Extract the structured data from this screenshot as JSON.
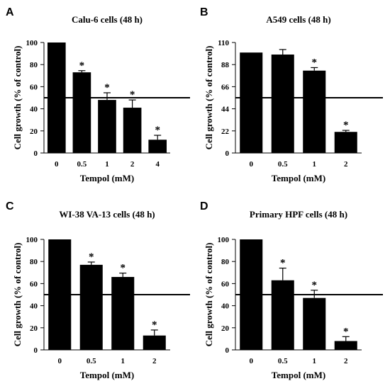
{
  "chart_data": [
    {
      "type": "bar",
      "panel": "A",
      "title": "Calu-6 cells (48 h)",
      "xlabel": "Tempol (mM)",
      "ylabel": "Cell growth (% of control)",
      "categories": [
        "0",
        "0.5",
        "1",
        "2",
        "4"
      ],
      "values": [
        100,
        73,
        48,
        41,
        12
      ],
      "errors": [
        0,
        1.5,
        6.5,
        7,
        4
      ],
      "significant": [
        false,
        true,
        true,
        true,
        true
      ],
      "significance_marker": "*",
      "reference_line": 50,
      "ylim": [
        0,
        100
      ],
      "yticks": [
        0,
        20,
        40,
        60,
        80,
        100
      ],
      "bar_color": "#000000"
    },
    {
      "type": "bar",
      "panel": "B",
      "title": "A549 cells (48 h)",
      "xlabel": "Tempol (mM)",
      "ylabel": "Cell growth (% of control)",
      "categories": [
        "0",
        "0.5",
        "1",
        "2"
      ],
      "values": [
        100,
        98,
        82,
        21
      ],
      "errors": [
        0,
        5,
        3,
        1.5
      ],
      "significant": [
        false,
        false,
        true,
        true
      ],
      "significance_marker": "*",
      "reference_line": 55,
      "ylim": [
        0,
        110
      ],
      "yticks": [
        0,
        22,
        44,
        66,
        88,
        110
      ],
      "bar_color": "#000000"
    },
    {
      "type": "bar",
      "panel": "C",
      "title": "WI-38 VA-13 cells (48 h)",
      "xlabel": "Tempol (mM)",
      "ylabel": "Cell growth (% of control)",
      "categories": [
        "0",
        "0.5",
        "1",
        "2"
      ],
      "values": [
        100,
        77,
        66,
        13
      ],
      "errors": [
        0,
        2.5,
        3.5,
        5
      ],
      "significant": [
        false,
        true,
        true,
        true
      ],
      "significance_marker": "*",
      "reference_line": 50,
      "ylim": [
        0,
        100
      ],
      "yticks": [
        0,
        20,
        40,
        60,
        80,
        100
      ],
      "bar_color": "#000000"
    },
    {
      "type": "bar",
      "panel": "D",
      "title": "Primary HPF cells (48 h)",
      "xlabel": "Tempol (mM)",
      "ylabel": "Cell growth (% of control)",
      "categories": [
        "0",
        "0.5",
        "1",
        "2"
      ],
      "values": [
        100,
        63,
        47,
        8
      ],
      "errors": [
        0,
        11,
        7,
        4
      ],
      "significant": [
        false,
        true,
        true,
        true
      ],
      "significance_marker": "*",
      "reference_line": 50,
      "ylim": [
        0,
        100
      ],
      "yticks": [
        0,
        20,
        40,
        60,
        80,
        100
      ],
      "bar_color": "#000000"
    }
  ]
}
